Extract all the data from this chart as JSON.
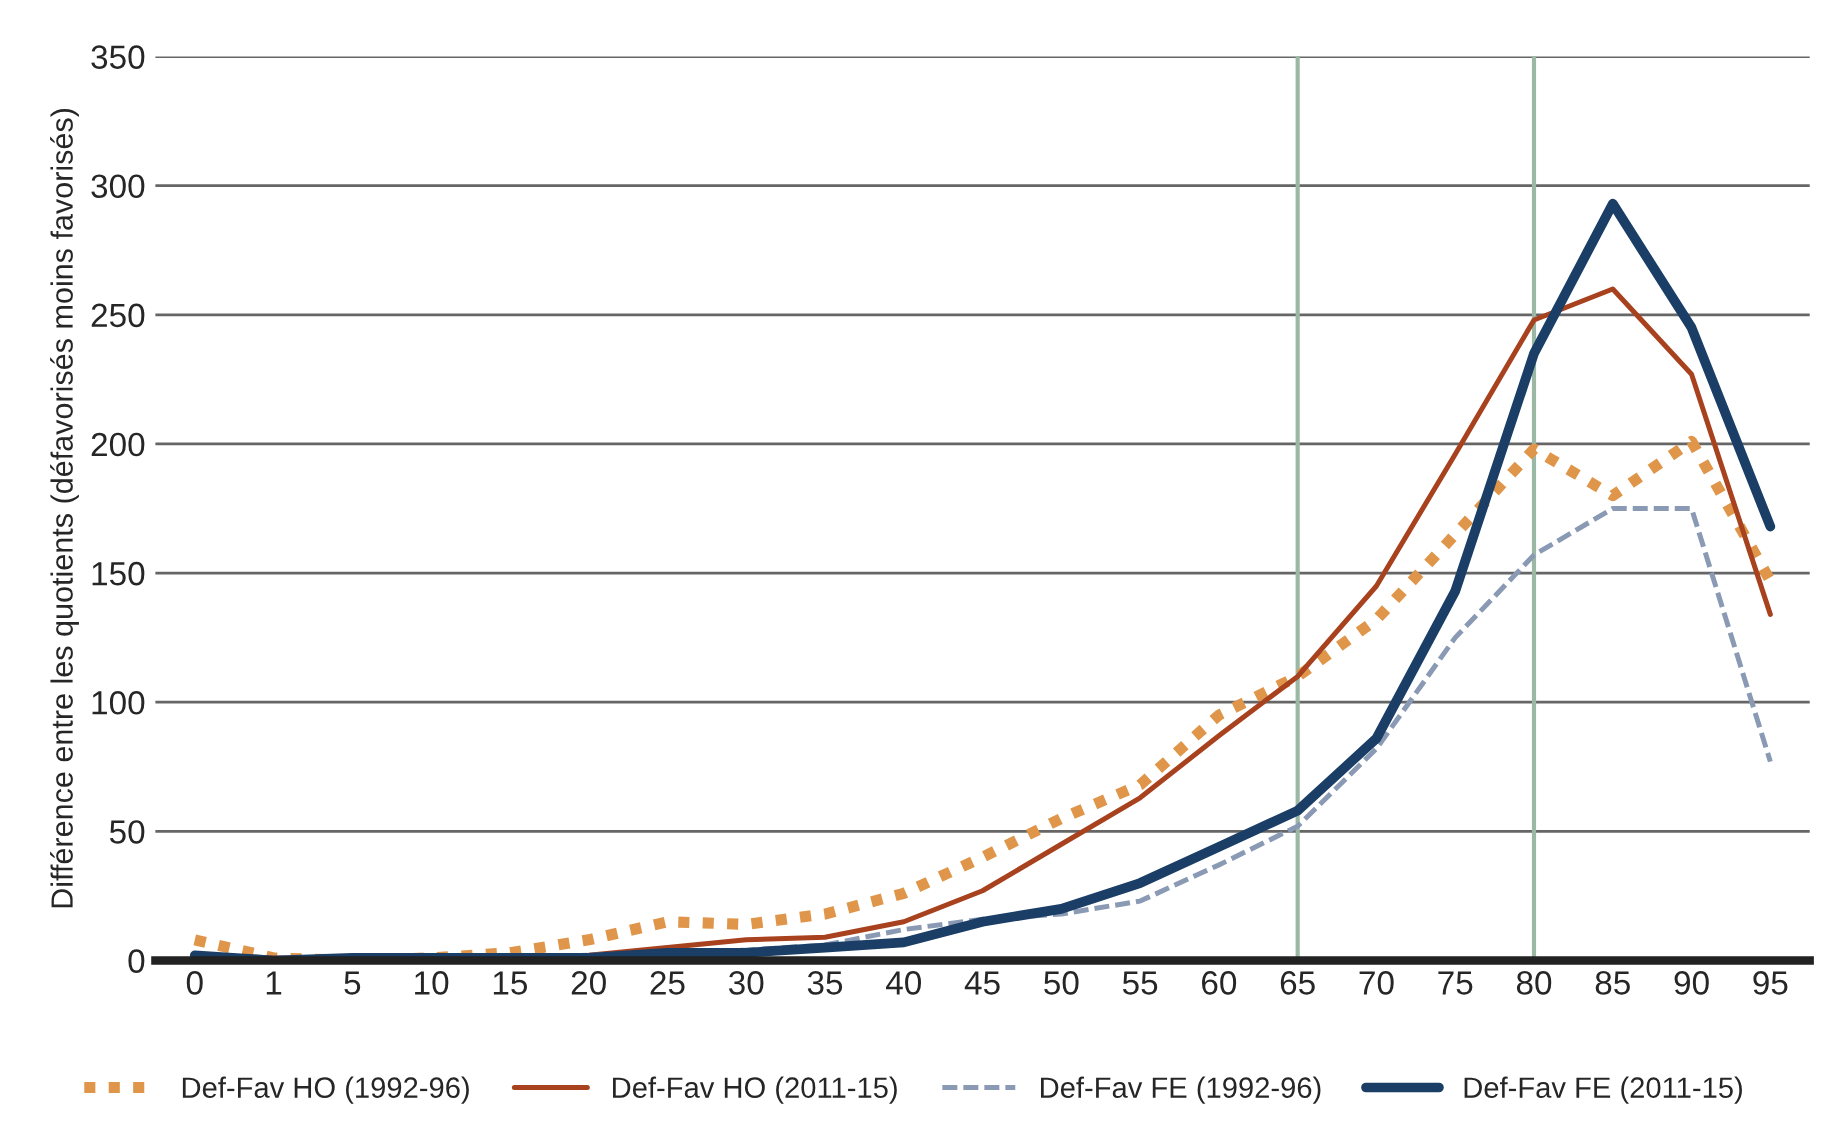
{
  "chart_data": {
    "type": "line",
    "ylabel": "Différence entre les quotients (défavorisés moins favorisés)",
    "categories": [
      "0",
      "1",
      "5",
      "10",
      "15",
      "20",
      "25",
      "30",
      "35",
      "40",
      "45",
      "50",
      "55",
      "60",
      "65",
      "70",
      "75",
      "80",
      "85",
      "90",
      "95"
    ],
    "series": [
      {
        "name": "Def-Fav HO (1992-96)",
        "color": "#e0964a",
        "line_style": "dotted",
        "values": [
          8,
          1,
          0,
          1,
          3,
          8,
          15,
          14,
          18,
          26,
          40,
          55,
          68,
          95,
          110,
          132,
          165,
          198,
          180,
          201,
          147
        ]
      },
      {
        "name": "Def-Fav HO (2011-15)",
        "color": "#a8421e",
        "line_style": "solid",
        "values": [
          2,
          1,
          1,
          1,
          1,
          2,
          5,
          8,
          9,
          15,
          27,
          45,
          63,
          87,
          110,
          145,
          196,
          248,
          260,
          227,
          134
        ]
      },
      {
        "name": "Def-Fav FE (1992-96)",
        "color": "#8a9ab4",
        "line_style": "dashed",
        "values": [
          2,
          0,
          0,
          0,
          1,
          2,
          3,
          4,
          6,
          12,
          16,
          18,
          23,
          37,
          52,
          82,
          125,
          157,
          175,
          175,
          77
        ]
      },
      {
        "name": "Def-Fav FE (2011-15)",
        "color": "#1a3e66",
        "line_style": "solid",
        "values": [
          2,
          0,
          1,
          1,
          1,
          1,
          3,
          3,
          5,
          7,
          15,
          20,
          30,
          44,
          58,
          86,
          143,
          235,
          293,
          245,
          168
        ]
      }
    ],
    "ylim": [
      0,
      350
    ],
    "yticks": [
      0,
      50,
      100,
      150,
      200,
      250,
      300,
      350
    ],
    "grid": "y",
    "legend": "bottom",
    "ref_lines": [
      {
        "axis": "x",
        "value": "65",
        "color": "#9ab8a4"
      },
      {
        "axis": "x",
        "value": "80",
        "color": "#9ab8a4"
      }
    ]
  }
}
